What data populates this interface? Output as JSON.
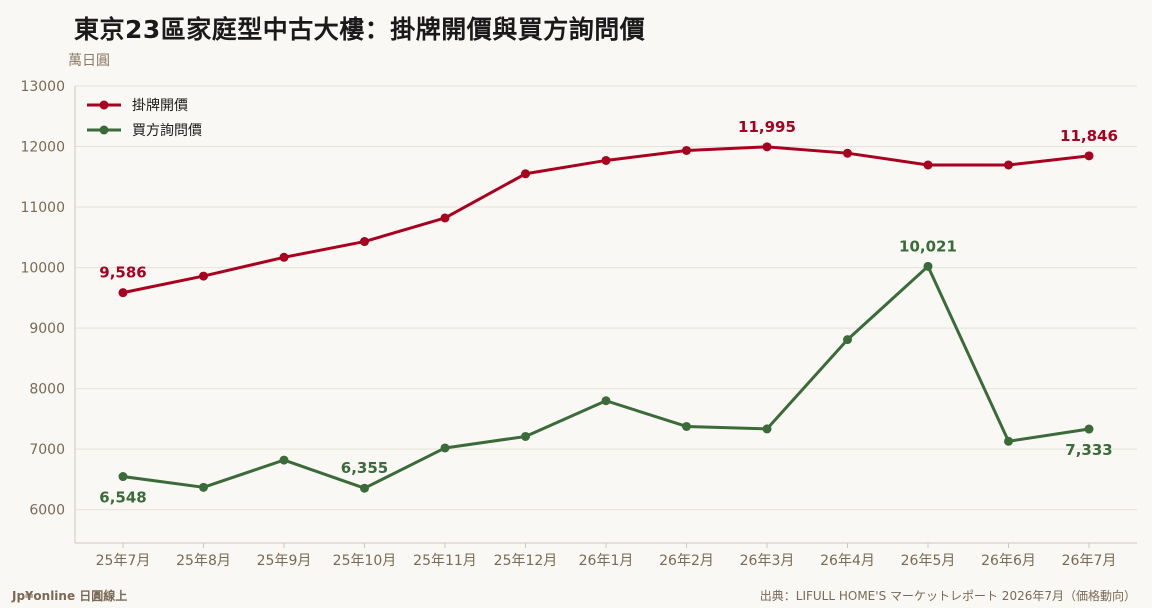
{
  "title": "東京23區家庭型中古大樓：掛牌開價與買方詢問價",
  "unit_label": "萬日圓",
  "footer": {
    "brand": "Jp¥online 日圓線上",
    "source": "出典：LIFULL HOME'S マーケットレポート 2026年7月（価格動向）"
  },
  "colors": {
    "listing": "#a8001e",
    "inquiry": "#3a6b38",
    "grid": "#e6e1da",
    "axis_text": "#7a6a55"
  },
  "chart_data": {
    "type": "line",
    "categories": [
      "25年7月",
      "25年8月",
      "25年9月",
      "25年10月",
      "25年11月",
      "25年12月",
      "26年1月",
      "26年2月",
      "26年3月",
      "26年4月",
      "26年5月",
      "26年6月",
      "26年7月"
    ],
    "ylim": [
      5450,
      13000
    ],
    "yticks": [
      6000,
      7000,
      8000,
      9000,
      10000,
      11000,
      12000,
      13000
    ],
    "grid": true,
    "legend_position": "top-left",
    "series": [
      {
        "name": "掛牌開價",
        "values": [
          9586,
          9860,
          10170,
          10430,
          10820,
          11550,
          11770,
          11935,
          11995,
          11890,
          11695,
          11695,
          11846
        ],
        "labels": [
          {
            "index": 0,
            "text": "9,586",
            "position": "above"
          },
          {
            "index": 8,
            "text": "11,995",
            "position": "above"
          },
          {
            "index": 12,
            "text": "11,846",
            "position": "above"
          }
        ]
      },
      {
        "name": "買方詢問價",
        "values": [
          6548,
          6370,
          6820,
          6355,
          7020,
          7210,
          7800,
          7375,
          7335,
          8810,
          10021,
          7130,
          7333
        ],
        "labels": [
          {
            "index": 0,
            "text": "6,548",
            "position": "below"
          },
          {
            "index": 3,
            "text": "6,355",
            "position": "above"
          },
          {
            "index": 10,
            "text": "10,021",
            "position": "above"
          },
          {
            "index": 12,
            "text": "7,333",
            "position": "below"
          }
        ]
      }
    ]
  }
}
